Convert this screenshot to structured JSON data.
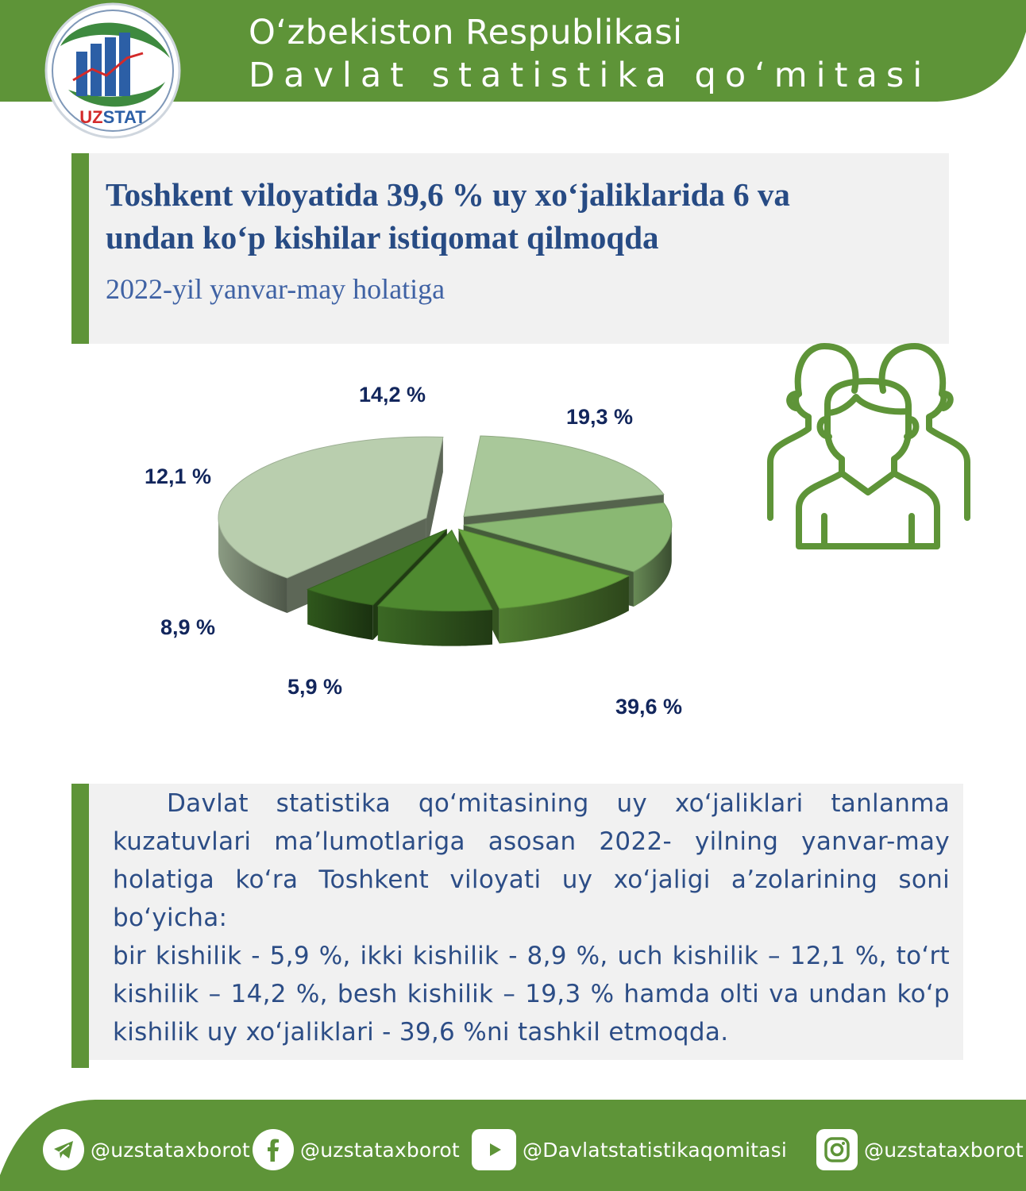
{
  "header": {
    "line1": "O‘zbekiston Respublikasi",
    "line2": "Davlat statistika qo‘mitasi",
    "logo_text": "UZSTAT"
  },
  "title": {
    "line1": "Toshkent viloyatida 39,6 % uy xo‘jaliklarida 6 va",
    "line2": "undan ko‘p kishilar istiqomat qilmoqda",
    "subtitle": "2022-yil yanvar-may holatiga"
  },
  "chart_data": {
    "type": "pie",
    "slices": [
      {
        "value": 39.6,
        "label": "39,6 %",
        "color": "#b9ceae"
      },
      {
        "value": 5.9,
        "label": "5,9 %",
        "color": "#3f7425"
      },
      {
        "value": 8.9,
        "label": "8,9 %",
        "color": "#4f8a30"
      },
      {
        "value": 12.1,
        "label": "12,1 %",
        "color": "#6aa741"
      },
      {
        "value": 14.2,
        "label": "14,2 %",
        "color": "#8ab873"
      },
      {
        "value": 19.3,
        "label": "19,3 %",
        "color": "#a9c89a"
      }
    ]
  },
  "body": {
    "paragraph1": "Davlat statistika qo‘mitasining uy xo‘jaliklari tanlanma kuzatuvlari ma’lumotlariga asosan 2022- yilning yanvar-may holatiga ko‘ra Toshkent viloyati uy xo‘jaligi a’zolarining soni bo‘yicha:",
    "paragraph2": "bir kishilik - 5,9 %, ikki kishilik - 8,9 %, uch kishilik – 12,1 %, to‘rt kishilik – 14,2 %, besh kishilik – 19,3 % hamda olti va undan ko‘p kishilik uy xo‘jaliklari - 39,6 %ni tashkil etmoqda."
  },
  "footer": {
    "telegram": "@uzstataxborot",
    "facebook": "@uzstataxborot",
    "youtube": "@Davlatstatistikaqomitasi",
    "instagram": "@uzstataxborot"
  },
  "colors": {
    "brand_green": "#5e9438",
    "title_blue": "#274b84",
    "label_navy": "#12265c"
  }
}
